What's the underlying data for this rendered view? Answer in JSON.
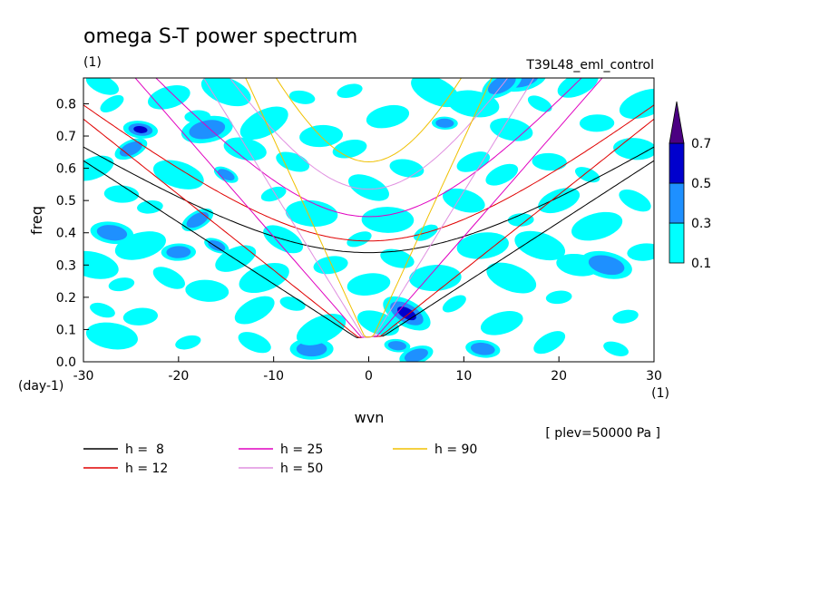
{
  "chart_data": {
    "type": "heatmap",
    "title": "omega S-T power spectrum",
    "subtitle_left": "(1)",
    "subtitle_right": "T39L48_eml_control",
    "xlabel": "wvn",
    "ylabel": "freq",
    "x_unit": "(1)",
    "y_unit": "(day-1)",
    "annotation": "[ plev=50000 Pa ]",
    "xlim": [
      -30,
      30
    ],
    "ylim": [
      0,
      0.88
    ],
    "xticks": [
      "-30",
      "-20",
      "-10",
      "0",
      "10",
      "20",
      "30"
    ],
    "xtick_values": [
      -30,
      -20,
      -10,
      0,
      10,
      20,
      30
    ],
    "yticks": [
      "0.0",
      "0.1",
      "0.2",
      "0.3",
      "0.4",
      "0.5",
      "0.6",
      "0.7",
      "0.8"
    ],
    "ytick_values": [
      0,
      0.1,
      0.2,
      0.3,
      0.4,
      0.5,
      0.6,
      0.7,
      0.8
    ],
    "colorbar": {
      "levels": [
        "0.1",
        "0.3",
        "0.5",
        "0.7"
      ],
      "level_values": [
        0.1,
        0.3,
        0.5,
        0.7
      ],
      "colors": [
        "#00ffff",
        "#1e90ff",
        "#0000cd",
        "#4b0082"
      ]
    },
    "series": [
      {
        "name": "h =  8",
        "h": 8,
        "color": "#000000"
      },
      {
        "name": "h = 12",
        "h": 12,
        "color": "#e00000"
      },
      {
        "name": "h = 25",
        "h": 25,
        "color": "#e000c0"
      },
      {
        "name": "h = 50",
        "h": 50,
        "color": "#e090e0"
      },
      {
        "name": "h = 90",
        "h": 90,
        "color": "#f0c000"
      }
    ],
    "blobs": [
      {
        "x": -27,
        "y": 0.8,
        "v": 0.15
      },
      {
        "x": -24,
        "y": 0.72,
        "v": 0.55
      },
      {
        "x": -21,
        "y": 0.82,
        "v": 0.15
      },
      {
        "x": -15,
        "y": 0.84,
        "v": 0.2
      },
      {
        "x": -18,
        "y": 0.76,
        "v": 0.15
      },
      {
        "x": -25,
        "y": 0.66,
        "v": 0.35
      },
      {
        "x": -13,
        "y": 0.66,
        "v": 0.2
      },
      {
        "x": -17,
        "y": 0.72,
        "v": 0.4
      },
      {
        "x": -15,
        "y": 0.58,
        "v": 0.35
      },
      {
        "x": -26,
        "y": 0.52,
        "v": 0.2
      },
      {
        "x": -29,
        "y": 0.6,
        "v": 0.15
      },
      {
        "x": -20,
        "y": 0.58,
        "v": 0.2
      },
      {
        "x": -23,
        "y": 0.48,
        "v": 0.15
      },
      {
        "x": -18,
        "y": 0.44,
        "v": 0.35
      },
      {
        "x": -27,
        "y": 0.4,
        "v": 0.3
      },
      {
        "x": -24,
        "y": 0.36,
        "v": 0.2
      },
      {
        "x": -16,
        "y": 0.36,
        "v": 0.45
      },
      {
        "x": -20,
        "y": 0.34,
        "v": 0.35
      },
      {
        "x": -14,
        "y": 0.32,
        "v": 0.2
      },
      {
        "x": -29,
        "y": 0.3,
        "v": 0.15
      },
      {
        "x": -26,
        "y": 0.24,
        "v": 0.2
      },
      {
        "x": -21,
        "y": 0.26,
        "v": 0.15
      },
      {
        "x": -17,
        "y": 0.22,
        "v": 0.2
      },
      {
        "x": -11,
        "y": 0.26,
        "v": 0.15
      },
      {
        "x": -28,
        "y": 0.16,
        "v": 0.2
      },
      {
        "x": -24,
        "y": 0.14,
        "v": 0.15
      },
      {
        "x": -12,
        "y": 0.16,
        "v": 0.2
      },
      {
        "x": -27,
        "y": 0.08,
        "v": 0.2
      },
      {
        "x": -19,
        "y": 0.06,
        "v": 0.15
      },
      {
        "x": -12,
        "y": 0.06,
        "v": 0.2
      },
      {
        "x": -6,
        "y": 0.04,
        "v": 0.4
      },
      {
        "x": -5,
        "y": 0.1,
        "v": 0.2
      },
      {
        "x": -8,
        "y": 0.18,
        "v": 0.2
      },
      {
        "x": -4,
        "y": 0.3,
        "v": 0.2
      },
      {
        "x": -9,
        "y": 0.38,
        "v": 0.2
      },
      {
        "x": -6,
        "y": 0.46,
        "v": 0.2
      },
      {
        "x": -10,
        "y": 0.52,
        "v": 0.15
      },
      {
        "x": -8,
        "y": 0.62,
        "v": 0.2
      },
      {
        "x": -5,
        "y": 0.7,
        "v": 0.15
      },
      {
        "x": -11,
        "y": 0.74,
        "v": 0.2
      },
      {
        "x": -7,
        "y": 0.82,
        "v": 0.15
      },
      {
        "x": -2,
        "y": 0.66,
        "v": 0.2
      },
      {
        "x": 0,
        "y": 0.54,
        "v": 0.2
      },
      {
        "x": 2,
        "y": 0.44,
        "v": 0.15
      },
      {
        "x": -1,
        "y": 0.38,
        "v": 0.2
      },
      {
        "x": 3,
        "y": 0.32,
        "v": 0.2
      },
      {
        "x": 0,
        "y": 0.24,
        "v": 0.15
      },
      {
        "x": 4,
        "y": 0.15,
        "v": 0.55
      },
      {
        "x": 3,
        "y": 0.05,
        "v": 0.4
      },
      {
        "x": 5,
        "y": 0.02,
        "v": 0.45
      },
      {
        "x": 1,
        "y": 0.12,
        "v": 0.2
      },
      {
        "x": 7,
        "y": 0.26,
        "v": 0.2
      },
      {
        "x": 6,
        "y": 0.4,
        "v": 0.15
      },
      {
        "x": 4,
        "y": 0.6,
        "v": 0.2
      },
      {
        "x": 2,
        "y": 0.76,
        "v": 0.15
      },
      {
        "x": 7,
        "y": 0.84,
        "v": 0.2
      },
      {
        "x": 8,
        "y": 0.74,
        "v": 0.35
      },
      {
        "x": 11,
        "y": 0.62,
        "v": 0.2
      },
      {
        "x": 10,
        "y": 0.5,
        "v": 0.2
      },
      {
        "x": 12,
        "y": 0.36,
        "v": 0.2
      },
      {
        "x": 9,
        "y": 0.18,
        "v": 0.2
      },
      {
        "x": 12,
        "y": 0.04,
        "v": 0.3
      },
      {
        "x": 14,
        "y": 0.12,
        "v": 0.15
      },
      {
        "x": 15,
        "y": 0.26,
        "v": 0.2
      },
      {
        "x": 16,
        "y": 0.44,
        "v": 0.2
      },
      {
        "x": 14,
        "y": 0.58,
        "v": 0.15
      },
      {
        "x": 15,
        "y": 0.72,
        "v": 0.2
      },
      {
        "x": 16,
        "y": 0.88,
        "v": 0.35
      },
      {
        "x": 18,
        "y": 0.8,
        "v": 0.15
      },
      {
        "x": 19,
        "y": 0.62,
        "v": 0.2
      },
      {
        "x": 20,
        "y": 0.5,
        "v": 0.15
      },
      {
        "x": 18,
        "y": 0.36,
        "v": 0.2
      },
      {
        "x": 20,
        "y": 0.2,
        "v": 0.2
      },
      {
        "x": 19,
        "y": 0.06,
        "v": 0.15
      },
      {
        "x": 22,
        "y": 0.3,
        "v": 0.15
      },
      {
        "x": 24,
        "y": 0.42,
        "v": 0.2
      },
      {
        "x": 23,
        "y": 0.58,
        "v": 0.2
      },
      {
        "x": 24,
        "y": 0.74,
        "v": 0.15
      },
      {
        "x": 22,
        "y": 0.86,
        "v": 0.2
      },
      {
        "x": 25,
        "y": 0.3,
        "v": 0.35
      },
      {
        "x": 27,
        "y": 0.14,
        "v": 0.2
      },
      {
        "x": 28,
        "y": 0.5,
        "v": 0.15
      },
      {
        "x": 28,
        "y": 0.66,
        "v": 0.2
      },
      {
        "x": 29,
        "y": 0.8,
        "v": 0.15
      },
      {
        "x": 26,
        "y": 0.04,
        "v": 0.15
      },
      {
        "x": 29,
        "y": 0.34,
        "v": 0.2
      },
      {
        "x": 14,
        "y": 0.86,
        "v": 0.3
      },
      {
        "x": 11,
        "y": 0.8,
        "v": 0.2
      },
      {
        "x": -2,
        "y": 0.84,
        "v": 0.15
      },
      {
        "x": -28,
        "y": 0.86,
        "v": 0.2
      }
    ]
  }
}
